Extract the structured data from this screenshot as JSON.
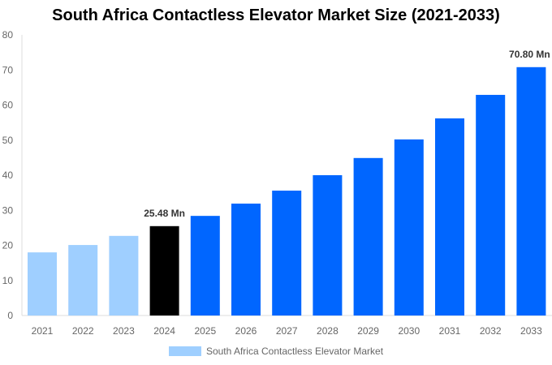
{
  "chart_data": {
    "type": "bar",
    "title": "South Africa Contactless Elevator Market Size (2021-2033)",
    "categories": [
      "2021",
      "2022",
      "2023",
      "2024",
      "2025",
      "2026",
      "2027",
      "2028",
      "2029",
      "2030",
      "2031",
      "2032",
      "2033"
    ],
    "series": [
      {
        "name": "South Africa Contactless Elevator Market",
        "values": [
          18.0,
          20.1,
          22.7,
          25.48,
          28.4,
          31.9,
          35.6,
          40.0,
          44.9,
          50.2,
          56.2,
          62.9,
          70.8
        ]
      }
    ],
    "bar_colors": [
      "#9fcfff",
      "#9fcfff",
      "#9fcfff",
      "#000000",
      "#0066ff",
      "#0066ff",
      "#0066ff",
      "#0066ff",
      "#0066ff",
      "#0066ff",
      "#0066ff",
      "#0066ff",
      "#0066ff"
    ],
    "data_labels": {
      "3": "25.48 Mn",
      "12": "70.80 Mn"
    },
    "ylim": [
      0,
      80
    ],
    "yticks": [
      0,
      10,
      20,
      30,
      40,
      50,
      60,
      70,
      80
    ],
    "grid": false,
    "legend_position": "bottom",
    "xlabel": "",
    "ylabel": ""
  }
}
